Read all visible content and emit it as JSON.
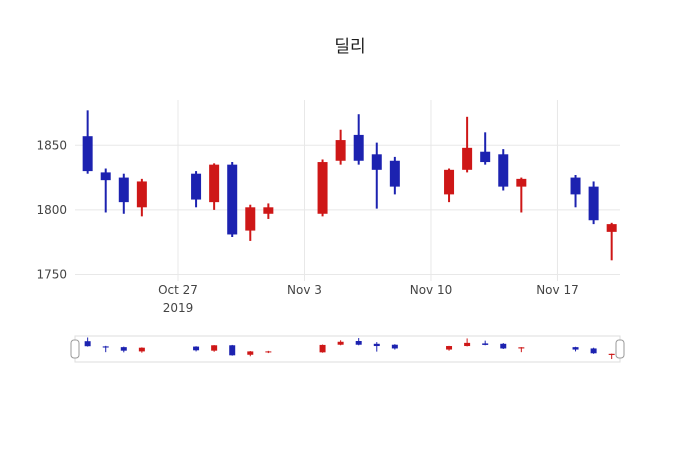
{
  "title": "딜리",
  "colors": {
    "increasing": "#ce1717",
    "decreasing": "#1c22b0",
    "grid": "#e8e8e8",
    "axis_text": "#444444",
    "background": "#ffffff",
    "slider_border": "#dddddd",
    "handle_border": "#999999"
  },
  "chart_data": {
    "type": "candlestick",
    "title": "딜리",
    "xlabel": "",
    "ylabel": "",
    "y_ticks": [
      1750,
      1800,
      1850
    ],
    "y_range": [
      1745,
      1885
    ],
    "x_ticks": [
      {
        "label": "Oct 27",
        "sublabel": "2019",
        "date": "2019-10-27"
      },
      {
        "label": "Nov 3",
        "sublabel": "",
        "date": "2019-11-03"
      },
      {
        "label": "Nov 10",
        "sublabel": "",
        "date": "2019-11-10"
      },
      {
        "label": "Nov 17",
        "sublabel": "",
        "date": "2019-11-17"
      }
    ],
    "candles": [
      {
        "date": "2019-10-22",
        "open": 1857,
        "high": 1877,
        "low": 1828,
        "close": 1830
      },
      {
        "date": "2019-10-23",
        "open": 1829,
        "high": 1832,
        "low": 1798,
        "close": 1823
      },
      {
        "date": "2019-10-24",
        "open": 1825,
        "high": 1828,
        "low": 1797,
        "close": 1806
      },
      {
        "date": "2019-10-25",
        "open": 1802,
        "high": 1824,
        "low": 1795,
        "close": 1822
      },
      {
        "date": "2019-10-28",
        "open": 1828,
        "high": 1830,
        "low": 1802,
        "close": 1808
      },
      {
        "date": "2019-10-29",
        "open": 1806,
        "high": 1836,
        "low": 1800,
        "close": 1835
      },
      {
        "date": "2019-10-30",
        "open": 1835,
        "high": 1837,
        "low": 1779,
        "close": 1781
      },
      {
        "date": "2019-10-31",
        "open": 1784,
        "high": 1804,
        "low": 1776,
        "close": 1802
      },
      {
        "date": "2019-11-01",
        "open": 1797,
        "high": 1805,
        "low": 1793,
        "close": 1802
      },
      {
        "date": "2019-11-04",
        "open": 1797,
        "high": 1839,
        "low": 1795,
        "close": 1837
      },
      {
        "date": "2019-11-05",
        "open": 1838,
        "high": 1862,
        "low": 1835,
        "close": 1854
      },
      {
        "date": "2019-11-06",
        "open": 1858,
        "high": 1874,
        "low": 1835,
        "close": 1838
      },
      {
        "date": "2019-11-07",
        "open": 1843,
        "high": 1852,
        "low": 1801,
        "close": 1831
      },
      {
        "date": "2019-11-08",
        "open": 1838,
        "high": 1841,
        "low": 1812,
        "close": 1818
      },
      {
        "date": "2019-11-11",
        "open": 1812,
        "high": 1832,
        "low": 1806,
        "close": 1831
      },
      {
        "date": "2019-11-12",
        "open": 1831,
        "high": 1872,
        "low": 1829,
        "close": 1848
      },
      {
        "date": "2019-11-13",
        "open": 1845,
        "high": 1860,
        "low": 1835,
        "close": 1837
      },
      {
        "date": "2019-11-14",
        "open": 1843,
        "high": 1847,
        "low": 1815,
        "close": 1818
      },
      {
        "date": "2019-11-15",
        "open": 1818,
        "high": 1825,
        "low": 1798,
        "close": 1824
      },
      {
        "date": "2019-11-18",
        "open": 1825,
        "high": 1827,
        "low": 1802,
        "close": 1812
      },
      {
        "date": "2019-11-19",
        "open": 1818,
        "high": 1822,
        "low": 1789,
        "close": 1792
      },
      {
        "date": "2019-11-20",
        "open": 1783,
        "high": 1790,
        "low": 1761,
        "close": 1789
      }
    ],
    "legend": "off",
    "grid": "on",
    "rangeslider": "on"
  }
}
